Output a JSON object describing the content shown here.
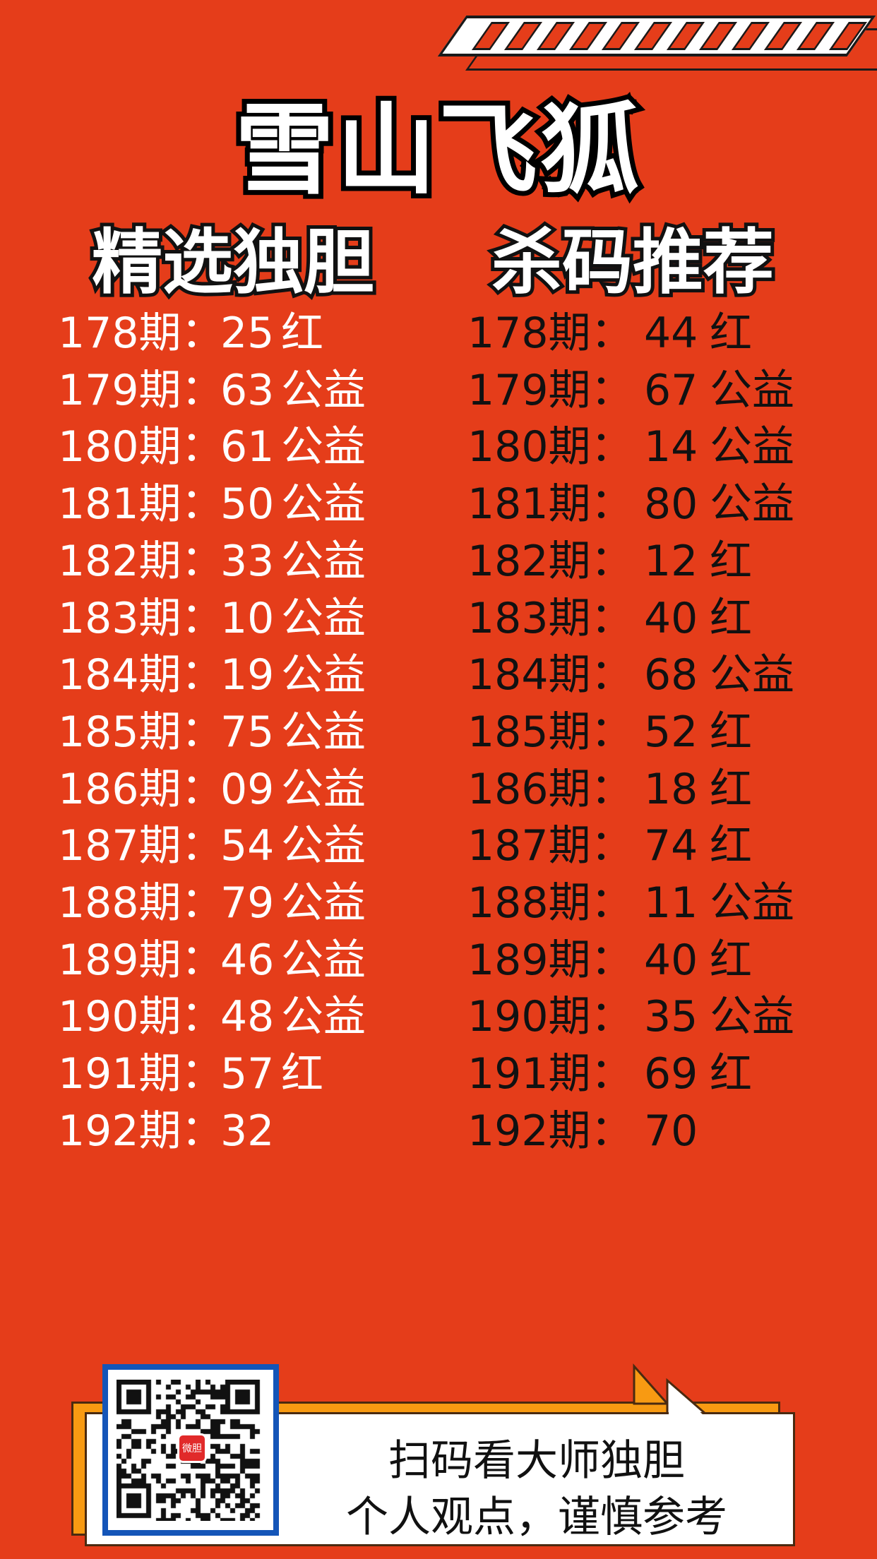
{
  "title": "雪山飞狐",
  "left_heading": "精选独胆",
  "right_heading": "杀码推荐",
  "left_rows": [
    {
      "period": "178期：",
      "number": "25",
      "result": "红"
    },
    {
      "period": "179期：",
      "number": "63",
      "result": "公益"
    },
    {
      "period": "180期：",
      "number": "61",
      "result": "公益"
    },
    {
      "period": "181期：",
      "number": "50",
      "result": "公益"
    },
    {
      "period": "182期：",
      "number": "33",
      "result": "公益"
    },
    {
      "period": "183期：",
      "number": "10",
      "result": "公益"
    },
    {
      "period": "184期：",
      "number": "19",
      "result": "公益"
    },
    {
      "period": "185期：",
      "number": "75",
      "result": "公益"
    },
    {
      "period": "186期：",
      "number": "09",
      "result": "公益"
    },
    {
      "period": "187期：",
      "number": "54",
      "result": "公益"
    },
    {
      "period": "188期：",
      "number": "79",
      "result": "公益"
    },
    {
      "period": "189期：",
      "number": "46",
      "result": "公益"
    },
    {
      "period": "190期：",
      "number": "48",
      "result": "公益"
    },
    {
      "period": "191期：",
      "number": "57",
      "result": "红"
    },
    {
      "period": "192期：",
      "number": "32",
      "result": ""
    }
  ],
  "right_rows": [
    {
      "period": "178期：",
      "number": "44",
      "result": "红"
    },
    {
      "period": "179期：",
      "number": "67",
      "result": "公益"
    },
    {
      "period": "180期：",
      "number": "14",
      "result": "公益"
    },
    {
      "period": "181期：",
      "number": "80",
      "result": "公益"
    },
    {
      "period": "182期：",
      "number": "12",
      "result": "红"
    },
    {
      "period": "183期：",
      "number": "40",
      "result": "红"
    },
    {
      "period": "184期：",
      "number": "68",
      "result": "公益"
    },
    {
      "period": "185期：",
      "number": "52",
      "result": "红"
    },
    {
      "period": "186期：",
      "number": "18",
      "result": "红"
    },
    {
      "period": "187期：",
      "number": "74",
      "result": "红"
    },
    {
      "period": "188期：",
      "number": "11",
      "result": "公益"
    },
    {
      "period": "189期：",
      "number": "40",
      "result": "红"
    },
    {
      "period": "190期：",
      "number": "35",
      "result": "公益"
    },
    {
      "period": "191期：",
      "number": "69",
      "result": "红"
    },
    {
      "period": "192期：",
      "number": "70",
      "result": ""
    }
  ],
  "footer": {
    "line1": "扫码看大师独胆",
    "line2": "个人观点，谨慎参考",
    "qr_logo": "微胆",
    "qr_icon": "qr-code-icon"
  },
  "colors": {
    "background": "#e53d1a",
    "accent_orange": "#f89a12",
    "qr_border": "#1455b8"
  }
}
